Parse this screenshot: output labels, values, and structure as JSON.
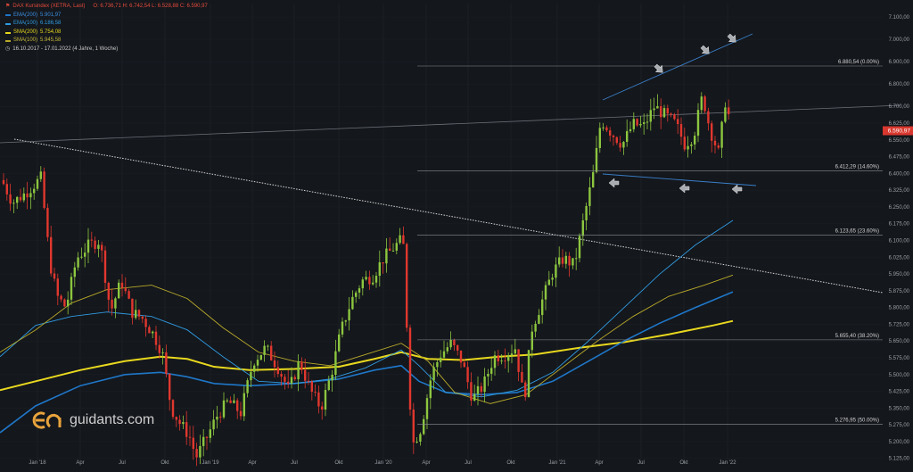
{
  "header": {
    "title": "DAX Kursindex (XETRA, Last)",
    "ohlc": "O: 6.736,71  H: 6.742,54  L: 6.528,88  C: 6.590,97",
    "range": "16.10.2017 - 17.01.2022   (4 Jahre, 1 Woche)"
  },
  "brand": {
    "name": "guidants.com",
    "accent": "#e8a33c"
  },
  "chart_data": {
    "type": "candlestick",
    "title": "DAX Kursindex (XETRA, Last)",
    "x_ticks": [
      "Jan '18",
      "Apr",
      "Jul",
      "Okt",
      "Jan '19",
      "Apr",
      "Jul",
      "Okt",
      "Jan '20",
      "Apr",
      "Jul",
      "Okt",
      "Jan '21",
      "Apr",
      "Jul",
      "Okt",
      "Jan '22"
    ],
    "y_ticks": [
      "7.100,00",
      "7.000,00",
      "6.900,00",
      "6.800,00",
      "6.700,00",
      "6.625,00",
      "6.550,00",
      "6.475,00",
      "6.400,00",
      "6.325,00",
      "6.250,00",
      "6.175,00",
      "6.100,00",
      "6.025,00",
      "5.950,00",
      "5.875,00",
      "5.800,00",
      "5.725,00",
      "5.650,00",
      "5.575,00",
      "5.500,00",
      "5.425,00",
      "5.350,00",
      "5.275,00",
      "5.200,00",
      "5.125,00"
    ],
    "ylim": [
      5100,
      7160
    ],
    "last_price": "6.590,97",
    "colors": {
      "up": "#8cc63f",
      "down": "#e0372e",
      "ema200": "#1f77c8",
      "ema100": "#2f9be0",
      "sma200": "#e8d81e",
      "sma100": "#b8a92a"
    },
    "series": [
      {
        "name": "EMA(200)",
        "value": "5.901,97"
      },
      {
        "name": "EMA(100)",
        "value": "6.186,58"
      },
      {
        "name": "SMA(200)",
        "value": "5.754,08"
      },
      {
        "name": "SMA(100)",
        "value": "5.945,58"
      }
    ],
    "fib_levels": [
      {
        "label": "6.880,54 (0.00%)",
        "value": 6880.54
      },
      {
        "label": "6.412,29 (14.60%)",
        "value": 6412.29
      },
      {
        "label": "6.123,65 (23.60%)",
        "value": 6123.65
      },
      {
        "label": "5.655,40 (38.20%)",
        "value": 5655.4
      },
      {
        "label": "5.276,95 (50.00%)",
        "value": 5276.95
      }
    ]
  }
}
